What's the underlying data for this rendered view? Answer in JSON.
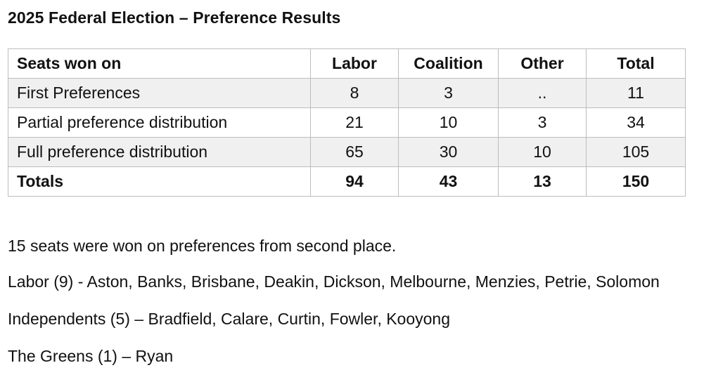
{
  "title": "2025 Federal Election – Preference Results",
  "table": {
    "headers": [
      "Seats won on",
      "Labor",
      "Coalition",
      "Other",
      "Total"
    ],
    "rows": [
      {
        "label": "First Preferences",
        "labor": "8",
        "coalition": "3",
        "other": "..",
        "total": "11"
      },
      {
        "label": "Partial preference distribution",
        "labor": "21",
        "coalition": "10",
        "other": "3",
        "total": "34"
      },
      {
        "label": "Full preference distribution",
        "labor": "65",
        "coalition": "30",
        "other": "10",
        "total": "105"
      },
      {
        "label": "Totals",
        "labor": "94",
        "coalition": "43",
        "other": "13",
        "total": "150"
      }
    ]
  },
  "notes": {
    "summary": "15 seats were won on preferences from second place.",
    "labor": "Labor (9) - Aston, Banks, Brisbane, Deakin, Dickson, Melbourne, Menzies, Petrie, Solomon",
    "independents": "Independents (5) – Bradfield, Calare, Curtin, Fowler, Kooyong",
    "greens": "The Greens (1) – Ryan"
  }
}
